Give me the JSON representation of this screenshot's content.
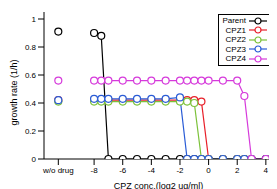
{
  "chart_data": {
    "type": "line",
    "x_label": "CPZ conc.(log2 ug/ml)",
    "y_label": "growth rate (1/h)",
    "x": [
      -8,
      -7.5,
      -7,
      -6,
      -5,
      -4,
      -3,
      -2,
      -1.5,
      -1,
      -0.5,
      0,
      1,
      2,
      2.5,
      3,
      4
    ],
    "series": [
      {
        "name": "Parent",
        "color": "#000000",
        "without_drug": 0.91,
        "values": [
          0.9,
          0.88,
          0,
          0,
          0,
          0,
          0,
          0,
          0,
          0,
          0,
          0,
          0,
          0,
          0,
          0,
          0
        ]
      },
      {
        "name": "CPZ1",
        "color": "#e8202a",
        "without_drug": 0.42,
        "values": [
          0.42,
          0.42,
          0.42,
          0.42,
          0.42,
          0.42,
          0.42,
          0.42,
          0.42,
          0.42,
          0.41,
          0,
          0,
          0,
          0,
          0,
          0
        ]
      },
      {
        "name": "CPZ2",
        "color": "#7cc23a",
        "without_drug": 0.41,
        "values": [
          0.41,
          0.41,
          0.41,
          0.41,
          0.41,
          0.41,
          0.41,
          0.41,
          0.41,
          0.4,
          0,
          0,
          0,
          0,
          0,
          0,
          0
        ]
      },
      {
        "name": "CPZ3",
        "color": "#2a5cd6",
        "without_drug": 0.42,
        "values": [
          0.43,
          0.43,
          0.43,
          0.43,
          0.43,
          0.43,
          0.43,
          0.44,
          0,
          0,
          0,
          0,
          0,
          0,
          0,
          0,
          0
        ]
      },
      {
        "name": "CPZ4",
        "color": "#d63adb",
        "without_drug": 0.56,
        "values": [
          0.56,
          0.56,
          0.56,
          0.56,
          0.56,
          0.56,
          0.56,
          0.56,
          0.56,
          0.56,
          0.56,
          0.56,
          0.56,
          0.56,
          0.45,
          0,
          0
        ]
      }
    ],
    "xlim": [
      -11.5,
      4.5
    ],
    "xticks": [
      {
        "value": -10.5,
        "label": "w/o drug"
      },
      -8,
      -6,
      -4,
      -2,
      0,
      2,
      4
    ],
    "ylim": [
      0,
      1.05
    ],
    "yticks": [
      0,
      0.2,
      0.4,
      0.6,
      0.8,
      1
    ],
    "marker": "circle",
    "legend": "upper right"
  }
}
